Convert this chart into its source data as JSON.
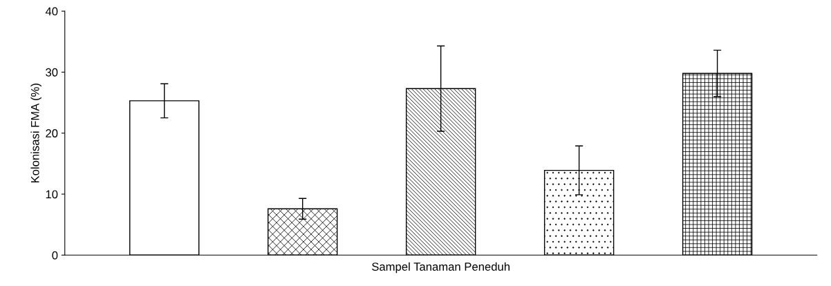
{
  "chart_data": {
    "type": "bar",
    "xlabel": "Sampel Tanaman Peneduh",
    "ylabel": "Kolonisasi FMA (%)",
    "categories": [
      null,
      null,
      null,
      null,
      null
    ],
    "values": [
      25.3,
      7.6,
      27.3,
      13.9,
      29.8
    ],
    "errors": [
      2.8,
      1.7,
      7.0,
      4.0,
      3.8
    ],
    "ylim": [
      0,
      40
    ],
    "yticks": [
      0,
      10,
      20,
      30,
      40
    ],
    "grid": false,
    "legend": false
  }
}
